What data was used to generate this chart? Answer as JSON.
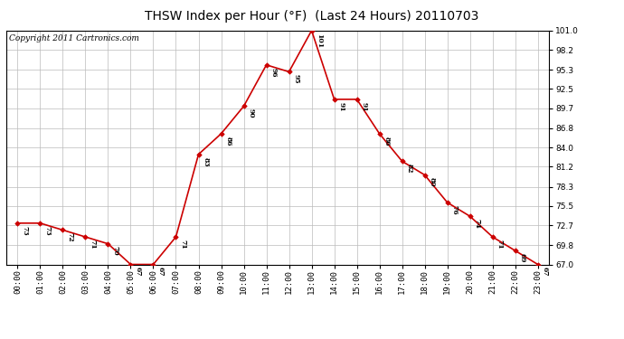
{
  "title": "THSW Index per Hour (°F)  (Last 24 Hours) 20110703",
  "copyright": "Copyright 2011 Cartronics.com",
  "hours": [
    "00:00",
    "01:00",
    "02:00",
    "03:00",
    "04:00",
    "05:00",
    "06:00",
    "07:00",
    "08:00",
    "09:00",
    "10:00",
    "11:00",
    "12:00",
    "13:00",
    "14:00",
    "15:00",
    "16:00",
    "17:00",
    "18:00",
    "19:00",
    "20:00",
    "21:00",
    "22:00",
    "23:00"
  ],
  "values": [
    73,
    73,
    72,
    71,
    70,
    67,
    67,
    71,
    83,
    86,
    90,
    96,
    95,
    101,
    91,
    91,
    86,
    82,
    80,
    76,
    74,
    71,
    69,
    67
  ],
  "line_color": "#cc0000",
  "marker_color": "#cc0000",
  "background_color": "#ffffff",
  "grid_color": "#bbbbbb",
  "ylim_min": 67.0,
  "ylim_max": 101.0,
  "yticks": [
    67.0,
    69.8,
    72.7,
    75.5,
    78.3,
    81.2,
    84.0,
    86.8,
    89.7,
    92.5,
    95.3,
    98.2,
    101.0
  ],
  "title_fontsize": 10,
  "copyright_fontsize": 6.5,
  "label_fontsize": 5.5,
  "tick_fontsize": 6.5
}
